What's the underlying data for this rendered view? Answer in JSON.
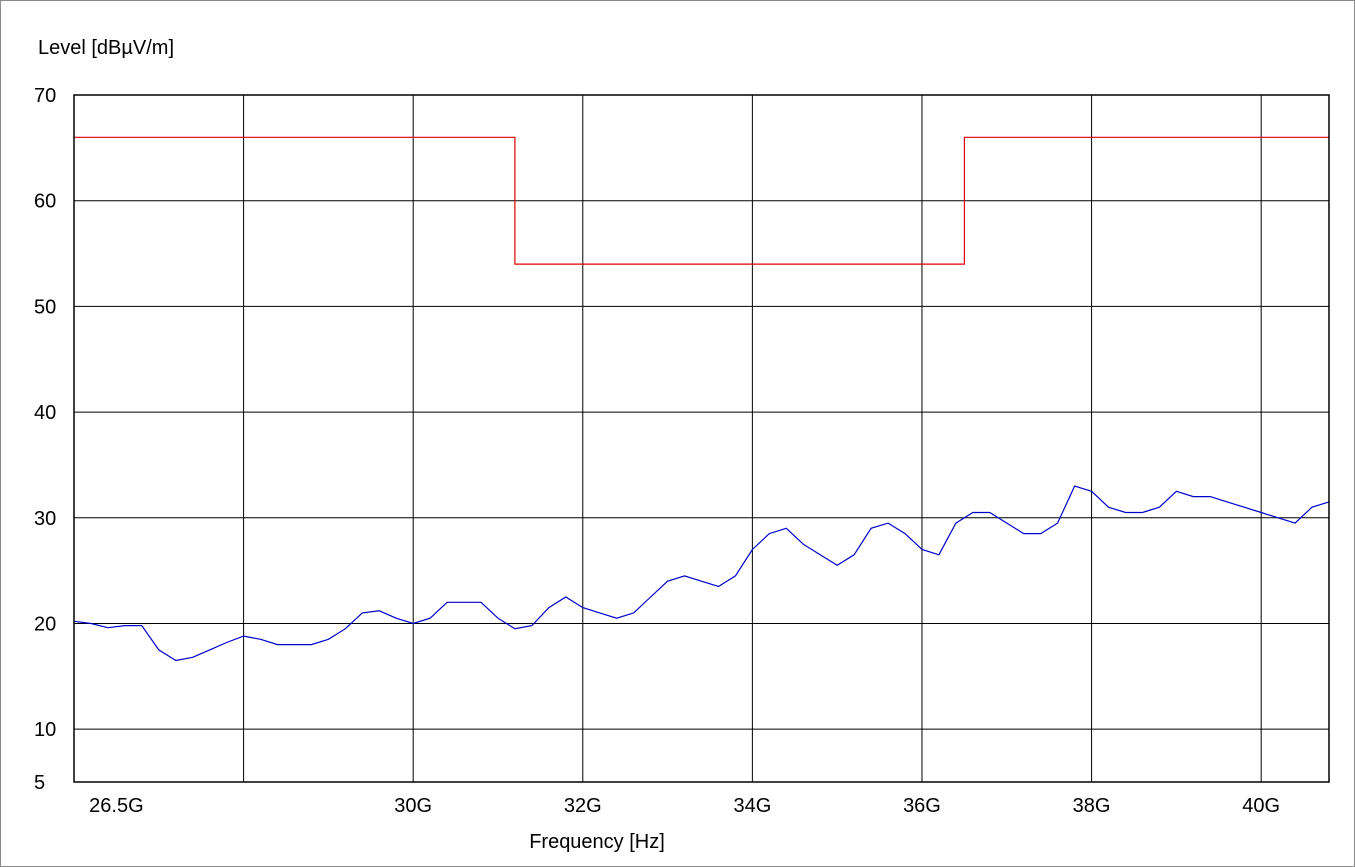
{
  "chart_data": {
    "type": "line",
    "ylabel": "Level [dBµV/m]",
    "xlabel": "Frequency [Hz]",
    "x_scale": "linear",
    "xlim_hz": [
      26000000000,
      40800000000
    ],
    "ylim": [
      5,
      70
    ],
    "grid": true,
    "y_ticks": [
      {
        "value": 70,
        "label": "70"
      },
      {
        "value": 60,
        "label": "60"
      },
      {
        "value": 50,
        "label": "50"
      },
      {
        "value": 40,
        "label": "40"
      },
      {
        "value": 30,
        "label": "30"
      },
      {
        "value": 20,
        "label": "20"
      },
      {
        "value": 10,
        "label": "10"
      },
      {
        "value": 5,
        "label": "5"
      }
    ],
    "x_ticks": [
      {
        "value": 26500000000,
        "label": "26.5G"
      },
      {
        "value": 30000000000,
        "label": "30G"
      },
      {
        "value": 32000000000,
        "label": "32G"
      },
      {
        "value": 34000000000,
        "label": "34G"
      },
      {
        "value": 36000000000,
        "label": "36G"
      },
      {
        "value": 38000000000,
        "label": "38G"
      },
      {
        "value": 40000000000,
        "label": "40G"
      }
    ],
    "x_gridlines_hz": [
      28000000000,
      30000000000,
      32000000000,
      34000000000,
      36000000000,
      38000000000,
      40000000000
    ],
    "series": [
      {
        "color": "#dd0000",
        "step": true,
        "x": [
          26000000000,
          31200000000,
          31200000000,
          36500000000,
          36500000000,
          40800000000
        ],
        "y": [
          66,
          66,
          54,
          54,
          66,
          66
        ]
      },
      {
        "color": "#0000cc",
        "step": false,
        "x": [
          26000000000,
          26200000000,
          26400000000,
          26600000000,
          26800000000,
          27000000000,
          27200000000,
          27400000000,
          27600000000,
          27800000000,
          28000000000,
          28200000000,
          28400000000,
          28600000000,
          28800000000,
          29000000000,
          29200000000,
          29400000000,
          29600000000,
          29800000000,
          30000000000,
          30200000000,
          30400000000,
          30600000000,
          30800000000,
          31000000000,
          31200000000,
          31400000000,
          31600000000,
          31800000000,
          32000000000,
          32200000000,
          32400000000,
          32600000000,
          32800000000,
          33000000000,
          33200000000,
          33400000000,
          33600000000,
          33800000000,
          34000000000,
          34200000000,
          34400000000,
          34600000000,
          34800000000,
          35000000000,
          35200000000,
          35400000000,
          35600000000,
          35800000000,
          36000000000,
          36200000000,
          36400000000,
          36600000000,
          36800000000,
          37000000000,
          37200000000,
          37400000000,
          37600000000,
          37800000000,
          38000000000,
          38200000000,
          38400000000,
          38600000000,
          38800000000,
          39000000000,
          39200000000,
          39400000000,
          39600000000,
          39800000000,
          40000000000,
          40200000000,
          40400000000,
          40600000000,
          40800000000
        ],
        "y": [
          20.2,
          20.0,
          19.6,
          19.8,
          19.8,
          17.5,
          16.5,
          16.8,
          17.5,
          18.2,
          18.8,
          18.5,
          18.0,
          18.0,
          18.0,
          18.5,
          19.5,
          21.0,
          21.2,
          20.5,
          20.0,
          20.5,
          22.0,
          22.0,
          22.0,
          20.5,
          19.5,
          19.8,
          21.5,
          22.5,
          21.5,
          21.0,
          20.5,
          21.0,
          22.5,
          24.0,
          24.5,
          24.0,
          23.5,
          24.5,
          27.0,
          28.5,
          29.0,
          27.5,
          26.5,
          25.5,
          26.5,
          29.0,
          29.5,
          28.5,
          27.0,
          26.5,
          29.5,
          30.5,
          30.5,
          29.5,
          28.5,
          28.5,
          29.5,
          33.0,
          32.5,
          31.0,
          30.5,
          30.5,
          31.0,
          32.5,
          32.0,
          32.0,
          31.5,
          31.0,
          30.5,
          30.0,
          29.5,
          31.0,
          31.5
        ]
      }
    ]
  }
}
